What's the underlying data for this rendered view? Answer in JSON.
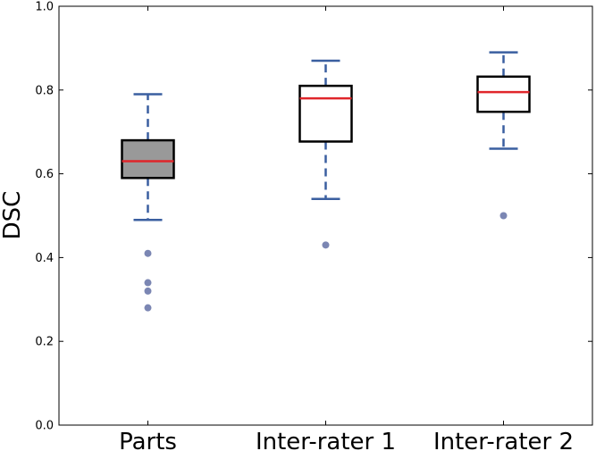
{
  "chart_data": {
    "type": "boxplot",
    "title": "",
    "xlabel": "",
    "ylabel": "DSC",
    "ylim": [
      0.0,
      1.0
    ],
    "yticks": [
      0.0,
      0.2,
      0.4,
      0.6,
      0.8,
      1.0
    ],
    "ytick_labels": [
      "0.0",
      "0.2",
      "0.4",
      "0.6",
      "0.8",
      "1.0"
    ],
    "grid": false,
    "categories": [
      "Parts",
      "Inter-rater 1",
      "Inter-rater 2"
    ],
    "boxes": [
      {
        "category": "Parts",
        "whisker_low": 0.49,
        "q1": 0.59,
        "median": 0.63,
        "q3": 0.68,
        "whisker_high": 0.79,
        "outliers": [
          0.41,
          0.34,
          0.32,
          0.28
        ],
        "fill": "#999999"
      },
      {
        "category": "Inter-rater 1",
        "whisker_low": 0.54,
        "q1": 0.677,
        "median": 0.78,
        "q3": 0.81,
        "whisker_high": 0.87,
        "outliers": [
          0.43
        ],
        "fill": "#ffffff"
      },
      {
        "category": "Inter-rater 2",
        "whisker_low": 0.66,
        "q1": 0.748,
        "median": 0.795,
        "q3": 0.832,
        "whisker_high": 0.89,
        "outliers": [
          0.5
        ],
        "fill": "#ffffff"
      }
    ],
    "colors": {
      "median": "#e0262b",
      "whisker": "#3a5fa0",
      "outlier": "#7b86b3",
      "box_edge": "#000000"
    }
  }
}
